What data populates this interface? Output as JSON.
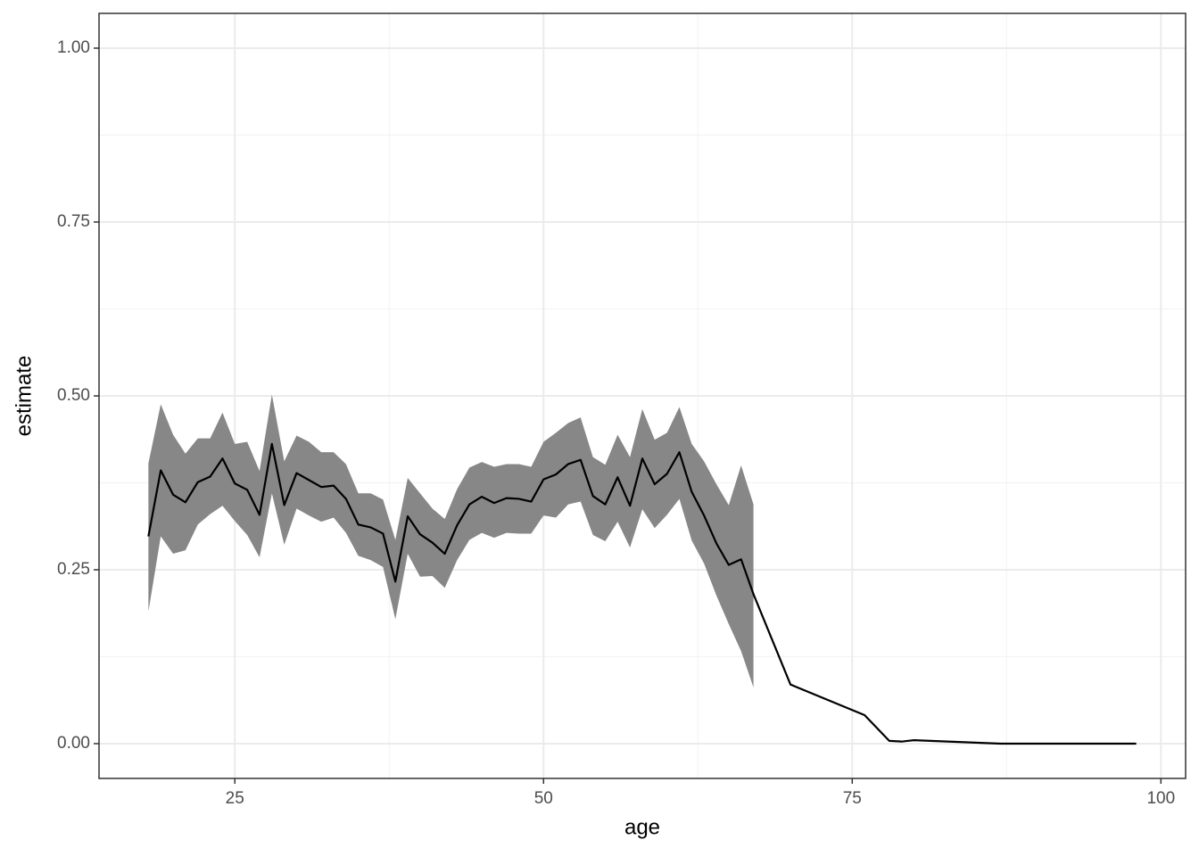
{
  "chart_data": {
    "type": "line",
    "x_label": "age",
    "y_label": "estimate",
    "x": [
      18,
      19,
      20,
      21,
      22,
      23,
      24,
      25,
      26,
      27,
      28,
      29,
      30,
      31,
      32,
      33,
      34,
      35,
      36,
      37,
      38,
      39,
      40,
      41,
      42,
      43,
      44,
      45,
      46,
      47,
      48,
      49,
      50,
      51,
      52,
      53,
      54,
      55,
      56,
      57,
      58,
      59,
      60,
      61,
      62,
      63,
      64,
      65,
      66,
      67,
      70,
      76,
      78,
      79,
      80,
      87,
      98
    ],
    "values": [
      0.298,
      0.393,
      0.358,
      0.347,
      0.376,
      0.384,
      0.41,
      0.374,
      0.365,
      0.329,
      0.431,
      0.343,
      0.389,
      0.379,
      0.369,
      0.371,
      0.352,
      0.315,
      0.311,
      0.302,
      0.233,
      0.327,
      0.301,
      0.289,
      0.273,
      0.314,
      0.344,
      0.355,
      0.346,
      0.353,
      0.352,
      0.348,
      0.38,
      0.387,
      0.402,
      0.408,
      0.356,
      0.344,
      0.383,
      0.342,
      0.41,
      0.373,
      0.388,
      0.419,
      0.362,
      0.328,
      0.288,
      0.257,
      0.265,
      0.215,
      0.085,
      0.041,
      0.004,
      0.003,
      0.005,
      0,
      0
    ],
    "upper": [
      0.403,
      0.488,
      0.444,
      0.417,
      0.439,
      0.439,
      0.476,
      0.431,
      0.434,
      0.392,
      0.502,
      0.406,
      0.443,
      0.434,
      0.419,
      0.419,
      0.402,
      0.36,
      0.36,
      0.351,
      0.293,
      0.382,
      0.36,
      0.338,
      0.323,
      0.366,
      0.397,
      0.405,
      0.398,
      0.402,
      0.402,
      0.398,
      0.434,
      0.447,
      0.461,
      0.469,
      0.412,
      0.401,
      0.444,
      0.412,
      0.481,
      0.437,
      0.447,
      0.484,
      0.431,
      0.406,
      0.373,
      0.343,
      0.4,
      0.344,
      null,
      null,
      null,
      null,
      null,
      null,
      null
    ],
    "lower": [
      0.19,
      0.298,
      0.273,
      0.278,
      0.315,
      0.33,
      0.342,
      0.32,
      0.3,
      0.268,
      0.36,
      0.286,
      0.338,
      0.328,
      0.319,
      0.325,
      0.303,
      0.27,
      0.264,
      0.254,
      0.179,
      0.273,
      0.24,
      0.241,
      0.224,
      0.264,
      0.293,
      0.303,
      0.296,
      0.303,
      0.302,
      0.302,
      0.328,
      0.325,
      0.344,
      0.348,
      0.3,
      0.291,
      0.319,
      0.282,
      0.337,
      0.31,
      0.329,
      0.352,
      0.292,
      0.259,
      0.213,
      0.172,
      0.133,
      0.081,
      null,
      null,
      null,
      null,
      null,
      null,
      null
    ],
    "color": "#000000",
    "band_color": "#878787",
    "xlim": [
      14,
      102
    ],
    "xticks": [
      25,
      50,
      75,
      100
    ],
    "ylim": [
      -0.05,
      1.05
    ],
    "yticks": [
      {
        "value": 0,
        "label": "0.00"
      },
      {
        "value": 0.25,
        "label": "0.25"
      },
      {
        "value": 0.5,
        "label": "0.50"
      },
      {
        "value": 0.75,
        "label": "0.75"
      },
      {
        "value": 1,
        "label": "1.00"
      }
    ],
    "grid": true
  }
}
